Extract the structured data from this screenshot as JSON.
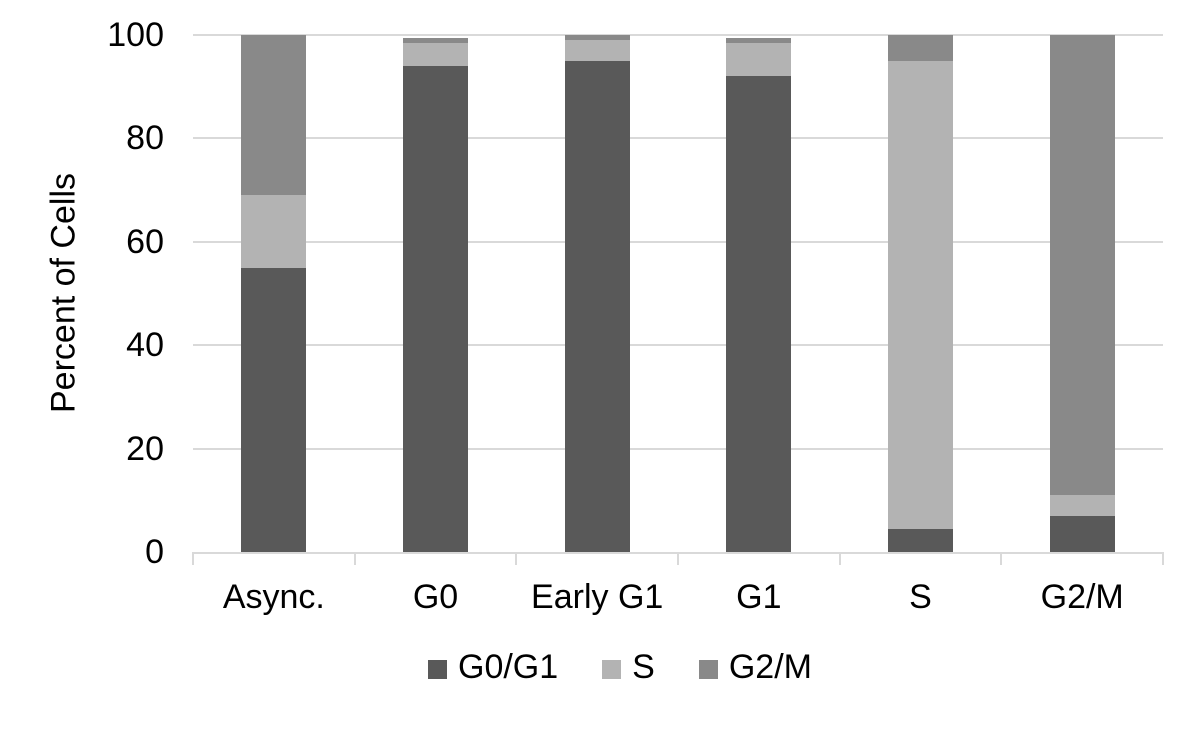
{
  "chart_data": {
    "type": "bar",
    "subtype": "stacked-100",
    "title": "",
    "xlabel": "",
    "ylabel": "Percent of Cells",
    "ylim": [
      0,
      100
    ],
    "yticks": [
      0,
      20,
      40,
      60,
      80,
      100
    ],
    "grid": "horizontal",
    "legend_position": "bottom",
    "categories": [
      "Async.",
      "G0",
      "Early G1",
      "G1",
      "S",
      "G2/M"
    ],
    "series": [
      {
        "name": "G0/G1",
        "color": "#595959",
        "values": [
          55,
          94,
          95,
          92,
          4.5,
          7
        ]
      },
      {
        "name": "S",
        "color": "#b3b3b3",
        "values": [
          14,
          4.5,
          4,
          6.5,
          90.5,
          4
        ]
      },
      {
        "name": "G2/M",
        "color": "#898989",
        "values": [
          31,
          1,
          1,
          1,
          5,
          89
        ]
      }
    ],
    "colors": {
      "gridline": "#d9d9d9",
      "axis_line": "#d9d9d9",
      "text": "#000000",
      "background": "#ffffff"
    }
  }
}
